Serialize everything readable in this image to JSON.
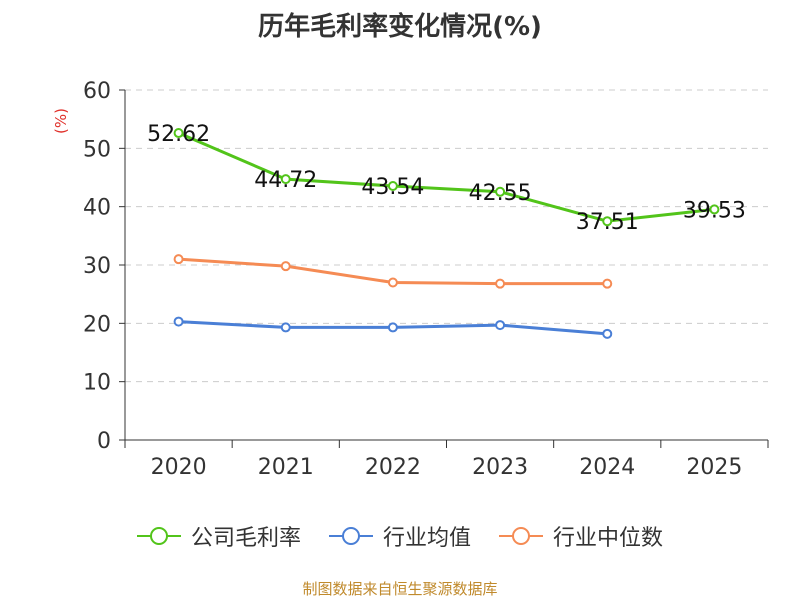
{
  "chart_data": {
    "type": "line",
    "title": "历年毛利率变化情况(%)",
    "ylabel": "(%)",
    "ylim": [
      0,
      60
    ],
    "yticks": [
      "0",
      "10",
      "20",
      "30",
      "40",
      "50",
      "60"
    ],
    "categories": [
      "2020",
      "2021",
      "2022",
      "2023",
      "2024",
      "2025"
    ],
    "grid": true,
    "legend_position": "bottom",
    "series": [
      {
        "name": "公司毛利率",
        "color": "#52c41a",
        "values": [
          52.62,
          44.72,
          43.54,
          42.55,
          37.51,
          39.53
        ],
        "labels": [
          "52.62",
          "44.72",
          "43.54",
          "42.55",
          "37.51",
          "39.53"
        ]
      },
      {
        "name": "行业均值",
        "color": "#4a7fd6",
        "values": [
          20.3,
          19.3,
          19.3,
          19.7,
          18.2,
          null
        ]
      },
      {
        "name": "行业中位数",
        "color": "#f58b54",
        "values": [
          31.0,
          29.8,
          27.0,
          26.8,
          26.8,
          null
        ]
      }
    ]
  },
  "source": "制图数据来自恒生聚源数据库"
}
